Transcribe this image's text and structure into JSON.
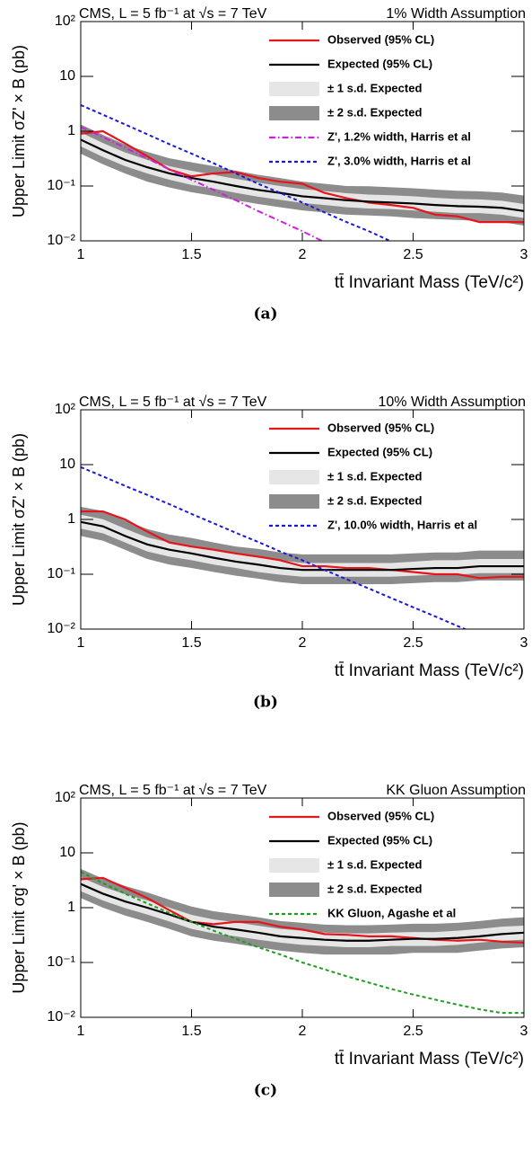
{
  "chart_data": [
    {
      "type": "line",
      "title": "CMS, L = 5 fb⁻¹ at √s = 7 TeV",
      "subtitle": "1% Width Assumption",
      "caption": "(a)",
      "xlabel": "tt̄ Invariant Mass (TeV/c²)",
      "ylabel": "Upper Limit σZ' × B (pb)",
      "xlim": [
        1,
        3
      ],
      "ylim": [
        0.01,
        100
      ],
      "log_y": true,
      "xticks": [
        1,
        1.5,
        2,
        2.5,
        3
      ],
      "yticks": [
        {
          "value": 0.01,
          "label": "10⁻²"
        },
        {
          "value": 0.1,
          "label": "10⁻¹"
        },
        1,
        10,
        {
          "value": 100,
          "label": "10²"
        }
      ],
      "x": [
        1.0,
        1.1,
        1.2,
        1.3,
        1.4,
        1.5,
        1.6,
        1.7,
        1.8,
        1.9,
        2.0,
        2.1,
        2.2,
        2.3,
        2.4,
        2.5,
        2.6,
        2.7,
        2.8,
        2.9,
        3.0
      ],
      "series": [
        {
          "name": "Observed (95% CL)",
          "color": "#e8141c",
          "kind": "line",
          "dash": "solid",
          "values": [
            0.9,
            1.0,
            0.6,
            0.35,
            0.2,
            0.15,
            0.17,
            0.18,
            0.14,
            0.12,
            0.11,
            0.075,
            0.06,
            0.05,
            0.045,
            0.04,
            0.03,
            0.028,
            0.022,
            0.022,
            0.022
          ]
        },
        {
          "name": "Expected (95% CL)",
          "color": "#000000",
          "kind": "line",
          "dash": "solid",
          "values": [
            0.7,
            0.45,
            0.3,
            0.22,
            0.17,
            0.14,
            0.12,
            0.1,
            0.085,
            0.075,
            0.065,
            0.06,
            0.055,
            0.052,
            0.05,
            0.048,
            0.045,
            0.043,
            0.042,
            0.04,
            0.035
          ]
        },
        {
          "name": "± 1 s.d. Expected",
          "color": "#e6e6e6",
          "kind": "band",
          "low": [
            0.53,
            0.34,
            0.23,
            0.17,
            0.13,
            0.105,
            0.09,
            0.075,
            0.064,
            0.056,
            0.049,
            0.045,
            0.041,
            0.039,
            0.038,
            0.036,
            0.034,
            0.032,
            0.032,
            0.03,
            0.026
          ],
          "high": [
            0.95,
            0.61,
            0.41,
            0.3,
            0.23,
            0.19,
            0.16,
            0.135,
            0.115,
            0.1,
            0.088,
            0.081,
            0.074,
            0.07,
            0.068,
            0.065,
            0.061,
            0.058,
            0.057,
            0.054,
            0.047
          ]
        },
        {
          "name": "± 2 s.d. Expected",
          "color": "#8c8c8c",
          "kind": "band",
          "low": [
            0.39,
            0.25,
            0.17,
            0.12,
            0.094,
            0.077,
            0.066,
            0.055,
            0.047,
            0.041,
            0.036,
            0.033,
            0.03,
            0.029,
            0.028,
            0.026,
            0.025,
            0.024,
            0.023,
            0.022,
            0.019
          ],
          "high": [
            1.33,
            0.86,
            0.57,
            0.42,
            0.32,
            0.27,
            0.23,
            0.19,
            0.16,
            0.14,
            0.12,
            0.11,
            0.1,
            0.099,
            0.095,
            0.091,
            0.086,
            0.082,
            0.08,
            0.076,
            0.067
          ]
        },
        {
          "name": "Z', 1.2% width, Harris et al",
          "color": "#cc22dd",
          "kind": "line",
          "dash": "dashdot",
          "values": [
            1.2,
            0.78,
            0.5,
            0.32,
            0.2,
            0.13,
            0.085,
            0.055,
            0.035,
            0.023,
            0.015,
            0.0095,
            0.006,
            null,
            null,
            null,
            null,
            null,
            null,
            null,
            null
          ]
        },
        {
          "name": "Z', 3.0% width, Harris et al",
          "color": "#1a1ad6",
          "kind": "line",
          "dash": "dash",
          "values": [
            3.0,
            2.0,
            1.33,
            0.88,
            0.58,
            0.39,
            0.26,
            0.17,
            0.11,
            0.075,
            0.05,
            0.033,
            0.022,
            0.015,
            0.0098,
            0.0065,
            null,
            null,
            null,
            null,
            null
          ]
        }
      ]
    },
    {
      "type": "line",
      "title": "CMS, L = 5 fb⁻¹ at √s = 7 TeV",
      "subtitle": "10% Width Assumption",
      "caption": "(b)",
      "xlabel": "tt̄ Invariant Mass (TeV/c²)",
      "ylabel": "Upper Limit σZ' × B (pb)",
      "xlim": [
        1,
        3
      ],
      "ylim": [
        0.01,
        100
      ],
      "log_y": true,
      "xticks": [
        1,
        1.5,
        2,
        2.5,
        3
      ],
      "yticks": [
        {
          "value": 0.01,
          "label": "10⁻²"
        },
        {
          "value": 0.1,
          "label": "10⁻¹"
        },
        1,
        10,
        {
          "value": 100,
          "label": "10²"
        }
      ],
      "x": [
        1.0,
        1.1,
        1.2,
        1.3,
        1.4,
        1.5,
        1.6,
        1.7,
        1.8,
        1.9,
        2.0,
        2.1,
        2.2,
        2.3,
        2.4,
        2.5,
        2.6,
        2.7,
        2.8,
        2.9,
        3.0
      ],
      "series": [
        {
          "name": "Observed (95% CL)",
          "color": "#e8141c",
          "kind": "line",
          "dash": "solid",
          "values": [
            1.4,
            1.4,
            1.0,
            0.6,
            0.38,
            0.32,
            0.28,
            0.24,
            0.21,
            0.18,
            0.14,
            0.14,
            0.13,
            0.13,
            0.12,
            0.11,
            0.1,
            0.1,
            0.085,
            0.09,
            0.09
          ]
        },
        {
          "name": "Expected (95% CL)",
          "color": "#000000",
          "kind": "line",
          "dash": "solid",
          "values": [
            0.9,
            0.75,
            0.5,
            0.35,
            0.28,
            0.24,
            0.2,
            0.17,
            0.15,
            0.13,
            0.12,
            0.12,
            0.12,
            0.12,
            0.12,
            0.125,
            0.13,
            0.13,
            0.14,
            0.14,
            0.14
          ]
        },
        {
          "name": "± 1 s.d. Expected",
          "color": "#e6e6e6",
          "kind": "band",
          "low": [
            0.68,
            0.56,
            0.38,
            0.26,
            0.21,
            0.18,
            0.15,
            0.13,
            0.11,
            0.098,
            0.09,
            0.09,
            0.09,
            0.09,
            0.09,
            0.094,
            0.098,
            0.098,
            0.105,
            0.105,
            0.105
          ],
          "high": [
            1.22,
            1.01,
            0.68,
            0.47,
            0.38,
            0.32,
            0.27,
            0.23,
            0.2,
            0.18,
            0.16,
            0.16,
            0.16,
            0.16,
            0.16,
            0.17,
            0.18,
            0.18,
            0.19,
            0.19,
            0.19
          ]
        },
        {
          "name": "± 2 s.d. Expected",
          "color": "#8c8c8c",
          "kind": "band",
          "low": [
            0.5,
            0.41,
            0.28,
            0.19,
            0.15,
            0.13,
            0.11,
            0.094,
            0.083,
            0.072,
            0.066,
            0.066,
            0.066,
            0.066,
            0.066,
            0.069,
            0.072,
            0.072,
            0.077,
            0.077,
            0.077
          ],
          "high": [
            1.7,
            1.43,
            0.95,
            0.67,
            0.53,
            0.46,
            0.38,
            0.32,
            0.29,
            0.25,
            0.23,
            0.23,
            0.23,
            0.23,
            0.23,
            0.24,
            0.25,
            0.25,
            0.27,
            0.27,
            0.27
          ]
        },
        {
          "name": "Z', 10.0% width, Harris et al",
          "color": "#1a1ad6",
          "kind": "line",
          "dash": "dash",
          "values": [
            9,
            6.1,
            4.1,
            2.8,
            1.9,
            1.26,
            0.85,
            0.57,
            0.39,
            0.26,
            0.18,
            0.12,
            0.081,
            0.055,
            0.037,
            0.025,
            0.017,
            0.0114,
            0.0077,
            null,
            null
          ]
        }
      ]
    },
    {
      "type": "line",
      "title": "CMS, L = 5 fb⁻¹ at √s = 7 TeV",
      "subtitle": "KK Gluon Assumption",
      "caption": "(c)",
      "xlabel": "tt̄ Invariant Mass (TeV/c²)",
      "ylabel": "Upper Limit σg' × B (pb)",
      "xlim": [
        1,
        3
      ],
      "ylim": [
        0.01,
        100
      ],
      "log_y": true,
      "xticks": [
        1,
        1.5,
        2,
        2.5,
        3
      ],
      "yticks": [
        {
          "value": 0.01,
          "label": "10⁻²"
        },
        {
          "value": 0.1,
          "label": "10⁻¹"
        },
        1,
        10,
        {
          "value": 100,
          "label": "10²"
        }
      ],
      "x": [
        1.0,
        1.1,
        1.2,
        1.3,
        1.4,
        1.5,
        1.6,
        1.7,
        1.8,
        1.9,
        2.0,
        2.1,
        2.2,
        2.3,
        2.4,
        2.5,
        2.6,
        2.7,
        2.8,
        2.9,
        3.0
      ],
      "series": [
        {
          "name": "Observed (95% CL)",
          "color": "#e8141c",
          "kind": "line",
          "dash": "solid",
          "values": [
            3.3,
            3.5,
            2.3,
            1.5,
            0.9,
            0.55,
            0.5,
            0.55,
            0.55,
            0.45,
            0.4,
            0.33,
            0.32,
            0.3,
            0.3,
            0.28,
            0.26,
            0.25,
            0.26,
            0.24,
            0.23
          ]
        },
        {
          "name": "Expected (95% CL)",
          "color": "#000000",
          "kind": "line",
          "dash": "solid",
          "values": [
            2.7,
            1.8,
            1.3,
            1.0,
            0.75,
            0.55,
            0.45,
            0.4,
            0.35,
            0.3,
            0.28,
            0.26,
            0.25,
            0.25,
            0.26,
            0.27,
            0.27,
            0.28,
            0.3,
            0.33,
            0.35
          ]
        },
        {
          "name": "± 1 s.d. Expected",
          "color": "#e6e6e6",
          "kind": "band",
          "low": [
            2.0,
            1.35,
            0.98,
            0.75,
            0.56,
            0.41,
            0.34,
            0.3,
            0.26,
            0.23,
            0.21,
            0.2,
            0.19,
            0.19,
            0.2,
            0.2,
            0.2,
            0.21,
            0.23,
            0.25,
            0.26
          ],
          "high": [
            3.6,
            2.4,
            1.76,
            1.35,
            1.0,
            0.74,
            0.61,
            0.54,
            0.47,
            0.41,
            0.38,
            0.35,
            0.34,
            0.34,
            0.35,
            0.36,
            0.36,
            0.38,
            0.41,
            0.45,
            0.47
          ]
        },
        {
          "name": "± 2 s.d. Expected",
          "color": "#8c8c8c",
          "kind": "band",
          "low": [
            1.5,
            1.0,
            0.72,
            0.55,
            0.41,
            0.3,
            0.25,
            0.22,
            0.19,
            0.165,
            0.15,
            0.14,
            0.14,
            0.14,
            0.14,
            0.15,
            0.15,
            0.15,
            0.165,
            0.18,
            0.19
          ],
          "high": [
            5.1,
            3.4,
            2.5,
            1.9,
            1.4,
            1.05,
            0.86,
            0.76,
            0.67,
            0.57,
            0.53,
            0.49,
            0.48,
            0.48,
            0.49,
            0.51,
            0.51,
            0.53,
            0.57,
            0.63,
            0.67
          ]
        },
        {
          "name": "KK Gluon, Agashe et al",
          "color": "#1e9e1e",
          "kind": "line",
          "dash": "dash",
          "values": [
            4.5,
            2.8,
            1.8,
            1.2,
            0.8,
            0.55,
            0.38,
            0.27,
            0.19,
            0.14,
            0.1,
            0.075,
            0.056,
            0.043,
            0.033,
            0.026,
            0.021,
            0.017,
            0.014,
            0.012,
            0.012
          ]
        }
      ]
    }
  ]
}
